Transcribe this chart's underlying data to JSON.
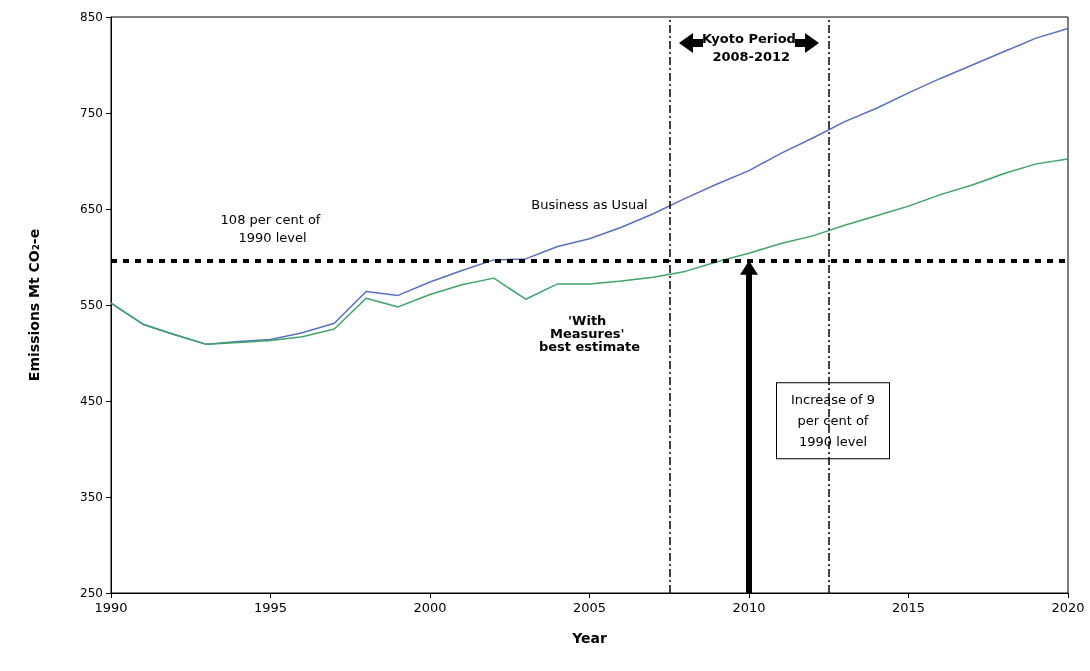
{
  "chart_data": {
    "type": "line",
    "xlabel": "Year",
    "ylabel": "Emissions Mt CO₂-e",
    "x": [
      1990,
      1991,
      1992,
      1993,
      1994,
      1995,
      1996,
      1997,
      1998,
      1999,
      2000,
      2001,
      2002,
      2003,
      2004,
      2005,
      2006,
      2007,
      2008,
      2009,
      2010,
      2011,
      2012,
      2013,
      2014,
      2015,
      2016,
      2017,
      2018,
      2019,
      2020
    ],
    "series": [
      {
        "name": "Business as Usual",
        "color": "#5a6fc4",
        "values": [
          552,
          530,
          519,
          509,
          512,
          514,
          521,
          531,
          564,
          560,
          574,
          586,
          597,
          598,
          611,
          619,
          631,
          645,
          661,
          676,
          690,
          708,
          724,
          741,
          755,
          771,
          786,
          800,
          814,
          828,
          838
        ]
      },
      {
        "name": "'With Measures' best estimate",
        "color": "#3fa468",
        "values": [
          552,
          530,
          519,
          509,
          511,
          513,
          517,
          525,
          557,
          548,
          561,
          571,
          578,
          556,
          572,
          572,
          575,
          579,
          585,
          595,
          604,
          614,
          622,
          633,
          643,
          653,
          665,
          675,
          687,
          697,
          702
        ]
      }
    ],
    "xlim": [
      1990,
      2020
    ],
    "xticks": [
      1990,
      1995,
      2000,
      2005,
      2010,
      2015,
      2020
    ],
    "ylim": [
      250,
      850
    ],
    "yticks": [
      250,
      350,
      450,
      550,
      650,
      750,
      850
    ],
    "ref_lines": [
      {
        "axis": "y",
        "value": 596,
        "label": "108 per cent of 1990 level",
        "color": "#000000",
        "line_style": "dotted"
      },
      {
        "axis": "x",
        "value": 2007.5,
        "label": null,
        "color": "#000000",
        "line_style": "dashed"
      },
      {
        "axis": "x",
        "value": 2012.5,
        "label": null,
        "color": "#000000",
        "line_style": "dashed"
      }
    ],
    "annotations": [
      "Kyoto Period 2008-2012",
      "Increase of 9 per cent of 1990 level"
    ],
    "grid": false,
    "legend": false,
    "marker": "none",
    "line_style": "solid"
  }
}
